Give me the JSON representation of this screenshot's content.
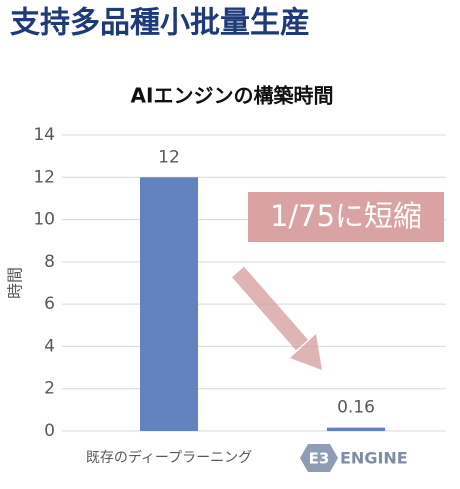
{
  "heading": "支持多品種小批量生産",
  "chart_data": {
    "type": "bar",
    "title": "AIエンジンの構築時間",
    "y_label": "時間",
    "categories": [
      "既存のディープラーニング",
      null
    ],
    "category_logo": {
      "badge": "E3",
      "text": "ENGINE"
    },
    "values": [
      12,
      0.16
    ],
    "color": "#6283c0",
    "ylim": [
      0,
      14
    ],
    "yticks": [
      0,
      2,
      4,
      6,
      8,
      10,
      12,
      14
    ],
    "grid": true,
    "annotation": "1/75に短縮"
  }
}
